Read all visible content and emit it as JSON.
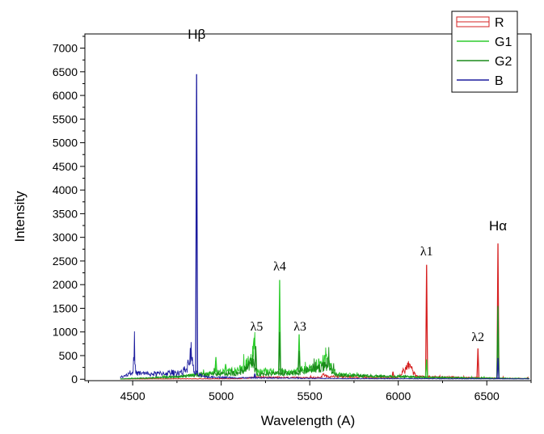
{
  "chart_data": {
    "type": "line",
    "xlabel": "Wavelength (A)",
    "ylabel": "Intensity",
    "xlim": [
      4230,
      6750
    ],
    "ylim": [
      -30,
      7300
    ],
    "x_ticks": [
      4500,
      5000,
      5500,
      6000,
      6500
    ],
    "y_ticks": [
      0,
      500,
      1000,
      1500,
      2000,
      2500,
      3000,
      3500,
      4000,
      4500,
      5000,
      5500,
      6000,
      6500,
      7000
    ],
    "grid": false,
    "legend_position": "top-right",
    "series": [
      {
        "name": "R",
        "color": "#d62020",
        "baseline": 8,
        "points": [
          [
            4430,
            5
          ],
          [
            4800,
            10
          ],
          [
            5100,
            12
          ],
          [
            5200,
            40
          ],
          [
            5550,
            30
          ],
          [
            5580,
            90
          ],
          [
            5600,
            60
          ],
          [
            5800,
            40
          ],
          [
            5960,
            30
          ],
          [
            6000,
            40
          ],
          [
            6060,
            300
          ],
          [
            6100,
            60
          ],
          [
            6500,
            25
          ],
          [
            6740,
            15
          ]
        ],
        "peaks": [
          [
            5970,
            160
          ],
          [
            6060,
            330
          ],
          [
            6160,
            2420
          ],
          [
            6450,
            650
          ],
          [
            6563,
            2870
          ]
        ]
      },
      {
        "name": "G1",
        "color": "#2ecc2e",
        "baseline": 60,
        "points": [
          [
            4430,
            8
          ],
          [
            4600,
            30
          ],
          [
            4800,
            70
          ],
          [
            4950,
            120
          ],
          [
            5050,
            170
          ],
          [
            5120,
            220
          ],
          [
            5170,
            420
          ],
          [
            5190,
            700
          ],
          [
            5200,
            150
          ],
          [
            5250,
            180
          ],
          [
            5300,
            160
          ],
          [
            5400,
            140
          ],
          [
            5500,
            230
          ],
          [
            5560,
            340
          ],
          [
            5600,
            380
          ],
          [
            5650,
            110
          ],
          [
            5800,
            70
          ],
          [
            6000,
            60
          ],
          [
            6200,
            35
          ],
          [
            6500,
            25
          ],
          [
            6740,
            15
          ]
        ],
        "peaks": [
          [
            4970,
            470
          ],
          [
            5025,
            320
          ],
          [
            5185,
            850
          ],
          [
            5330,
            2100
          ],
          [
            5440,
            950
          ],
          [
            5580,
            330
          ],
          [
            6160,
            420
          ],
          [
            6563,
            1500
          ]
        ]
      },
      {
        "name": "G2",
        "color": "#1a8a1a",
        "baseline": 40,
        "points": [
          [
            4430,
            5
          ],
          [
            4700,
            40
          ],
          [
            4900,
            90
          ],
          [
            5100,
            130
          ],
          [
            5180,
            380
          ],
          [
            5200,
            110
          ],
          [
            5400,
            120
          ],
          [
            5600,
            290
          ],
          [
            5650,
            90
          ],
          [
            6000,
            50
          ],
          [
            6500,
            20
          ],
          [
            6740,
            12
          ]
        ],
        "peaks": [
          [
            5195,
            700
          ],
          [
            5330,
            1000
          ],
          [
            5440,
            600
          ],
          [
            6563,
            1550
          ]
        ]
      },
      {
        "name": "B",
        "color": "#1c1c9e",
        "baseline": 50,
        "points": [
          [
            4430,
            40
          ],
          [
            4480,
            120
          ],
          [
            4500,
            200
          ],
          [
            4510,
            450
          ],
          [
            4520,
            130
          ],
          [
            4600,
            110
          ],
          [
            4700,
            130
          ],
          [
            4780,
            150
          ],
          [
            4810,
            250
          ],
          [
            4830,
            580
          ],
          [
            4845,
            150
          ],
          [
            4900,
            50
          ],
          [
            5100,
            30
          ],
          [
            5300,
            25
          ],
          [
            5700,
            15
          ],
          [
            6000,
            12
          ],
          [
            6400,
            10
          ],
          [
            6740,
            8
          ]
        ],
        "peaks": [
          [
            4861,
            6450
          ],
          [
            5190,
            120
          ],
          [
            6563,
            450
          ]
        ]
      }
    ],
    "annotations": [
      {
        "text": "Hβ",
        "x": 4861,
        "y": 7200
      },
      {
        "text": "Hα",
        "x": 6563,
        "y": 3150
      },
      {
        "text": "λ1",
        "x": 6160,
        "y": 2620
      },
      {
        "text": "λ2",
        "x": 6450,
        "y": 810
      },
      {
        "text": "λ3",
        "x": 5445,
        "y": 1030
      },
      {
        "text": "λ4",
        "x": 5330,
        "y": 2300
      },
      {
        "text": "λ5",
        "x": 5200,
        "y": 1030
      }
    ]
  }
}
